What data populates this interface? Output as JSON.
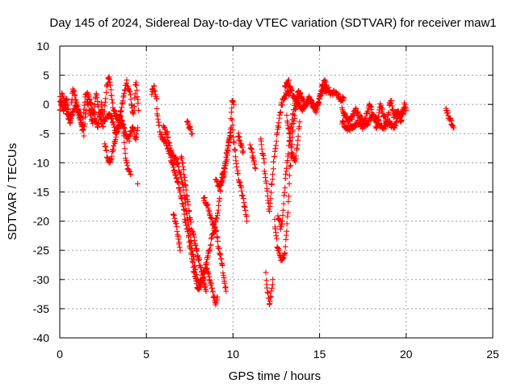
{
  "chart_data": {
    "type": "scatter",
    "title": "Day 145 of 2024, Sidereal Day-to-day VTEC variation (SDTVAR) for receiver maw1",
    "xlabel": "GPS time / hours",
    "ylabel": "SDTVAR / TECUs",
    "xlim": [
      0,
      25
    ],
    "ylim": [
      -40,
      10
    ],
    "x_ticks": [
      0,
      5,
      10,
      15,
      20,
      25
    ],
    "y_ticks": [
      -40,
      -35,
      -30,
      -25,
      -20,
      -15,
      -10,
      -5,
      0,
      5,
      10
    ],
    "x_tick_labels": [
      "0",
      "5",
      "10",
      "15",
      "20",
      "25"
    ],
    "y_tick_labels": [
      "-40",
      "-35",
      "-30",
      "-25",
      "-20",
      "-15",
      "-10",
      "-5",
      "0",
      "5",
      "10"
    ],
    "grid": true,
    "legend": "none",
    "marker": "+",
    "marker_color": "#ff0000",
    "series": [
      {
        "name": "maw1",
        "trace_anchors": [
          [
            [
              0.0,
              -1
            ],
            [
              0.15,
              2
            ],
            [
              0.3,
              0
            ],
            [
              0.45,
              -2
            ],
            [
              0.6,
              -3
            ],
            [
              0.75,
              3
            ],
            [
              0.9,
              1
            ],
            [
              1.1,
              -2
            ],
            [
              1.3,
              -4
            ],
            [
              1.5,
              2
            ],
            [
              1.7,
              -1
            ],
            [
              1.9,
              -3
            ],
            [
              2.1,
              2
            ],
            [
              2.3,
              -2
            ],
            [
              2.5,
              -4
            ],
            [
              2.7,
              3
            ],
            [
              2.85,
              5
            ],
            [
              3.05,
              0
            ],
            [
              3.25,
              -2
            ],
            [
              3.45,
              -3
            ],
            [
              3.65,
              1
            ],
            [
              3.85,
              4
            ],
            [
              4.05,
              2
            ],
            [
              4.25,
              -2
            ],
            [
              4.4,
              4
            ],
            [
              4.55,
              -1
            ]
          ],
          [
            [
              0.0,
              1
            ],
            [
              0.2,
              -1
            ],
            [
              0.4,
              1
            ],
            [
              0.6,
              -3
            ],
            [
              0.8,
              -1
            ],
            [
              1.0,
              0
            ],
            [
              1.2,
              -2
            ],
            [
              1.4,
              -5
            ],
            [
              1.6,
              2
            ],
            [
              1.8,
              0
            ],
            [
              2.0,
              -2
            ],
            [
              2.2,
              -4
            ],
            [
              2.4,
              0
            ],
            [
              2.6,
              -3
            ],
            [
              2.8,
              -2
            ],
            [
              3.0,
              -2
            ],
            [
              3.2,
              -5
            ],
            [
              3.4,
              -4
            ],
            [
              3.6,
              -3
            ],
            [
              3.8,
              -5
            ],
            [
              4.0,
              -6
            ],
            [
              4.2,
              -4
            ],
            [
              4.4,
              -6
            ],
            [
              4.5,
              -4
            ]
          ],
          [
            [
              2.6,
              -7
            ],
            [
              2.75,
              -9
            ],
            [
              2.9,
              -10
            ],
            [
              3.05,
              -8
            ],
            [
              3.2,
              -6
            ],
            [
              3.35,
              -4
            ],
            [
              3.5,
              -1
            ],
            [
              3.65,
              -4
            ],
            [
              3.8,
              -9
            ],
            [
              3.95,
              -11
            ],
            [
              4.1,
              -12
            ]
          ],
          [
            [
              5.3,
              2
            ],
            [
              5.45,
              3
            ],
            [
              5.6,
              1
            ]
          ],
          [
            [
              5.6,
              -1
            ],
            [
              5.7,
              -3
            ],
            [
              5.8,
              -5
            ],
            [
              6.0,
              -6
            ],
            [
              6.2,
              -7
            ],
            [
              6.4,
              -9
            ],
            [
              6.6,
              -11
            ],
            [
              6.8,
              -13
            ],
            [
              6.95,
              -15
            ],
            [
              7.1,
              -17
            ],
            [
              7.25,
              -20
            ],
            [
              7.4,
              -22
            ],
            [
              7.55,
              -25
            ],
            [
              7.7,
              -28
            ],
            [
              7.85,
              -30
            ],
            [
              8.0,
              -32
            ],
            [
              8.15,
              -31
            ],
            [
              8.3,
              -29
            ],
            [
              8.45,
              -28
            ],
            [
              8.6,
              -29
            ],
            [
              8.75,
              -31
            ],
            [
              8.9,
              -33
            ],
            [
              9.0,
              -34
            ],
            [
              9.1,
              -33
            ]
          ],
          [
            [
              6.0,
              -4
            ],
            [
              6.2,
              -5
            ],
            [
              6.4,
              -8
            ],
            [
              6.6,
              -9
            ],
            [
              6.8,
              -10
            ],
            [
              6.95,
              -12
            ],
            [
              7.1,
              -14
            ],
            [
              7.2,
              -16
            ],
            [
              7.35,
              -19
            ],
            [
              7.5,
              -22
            ],
            [
              7.65,
              -25
            ],
            [
              7.8,
              -28
            ],
            [
              7.95,
              -30
            ],
            [
              8.1,
              -31
            ],
            [
              8.25,
              -30
            ],
            [
              8.4,
              -28
            ],
            [
              8.55,
              -26
            ],
            [
              8.7,
              -24
            ],
            [
              8.85,
              -22
            ],
            [
              9.0,
              -20
            ],
            [
              9.1,
              -19
            ],
            [
              9.25,
              -15
            ],
            [
              9.4,
              -13
            ],
            [
              9.55,
              -11
            ],
            [
              9.7,
              -8
            ],
            [
              9.85,
              -4
            ],
            [
              9.95,
              1
            ],
            [
              10.05,
              0
            ]
          ],
          [
            [
              7.0,
              -9
            ],
            [
              7.15,
              -11
            ],
            [
              7.3,
              -15
            ],
            [
              7.45,
              -18
            ],
            [
              7.6,
              -21
            ],
            [
              7.75,
              -23
            ],
            [
              7.9,
              -25
            ],
            [
              8.05,
              -27
            ],
            [
              8.2,
              -29
            ],
            [
              8.35,
              -31
            ],
            [
              8.45,
              -32
            ]
          ],
          [
            [
              6.55,
              -19
            ],
            [
              6.7,
              -20
            ],
            [
              6.8,
              -22
            ],
            [
              6.95,
              -25
            ]
          ],
          [
            [
              7.35,
              -3
            ],
            [
              7.5,
              -4
            ],
            [
              7.65,
              -5
            ]
          ],
          [
            [
              8.3,
              -16
            ],
            [
              8.5,
              -17
            ],
            [
              8.7,
              -19
            ],
            [
              8.9,
              -21
            ],
            [
              9.05,
              -22
            ],
            [
              9.2,
              -25
            ],
            [
              9.35,
              -27
            ],
            [
              9.5,
              -30
            ],
            [
              9.6,
              -32
            ]
          ],
          [
            [
              9.0,
              -13
            ],
            [
              9.2,
              -14
            ],
            [
              9.4,
              -12
            ],
            [
              9.6,
              -9
            ],
            [
              9.8,
              -6
            ],
            [
              9.9,
              -4
            ]
          ],
          [
            [
              9.95,
              -3
            ],
            [
              10.05,
              -6
            ],
            [
              10.2,
              -10
            ],
            [
              10.35,
              -13
            ],
            [
              10.5,
              -15
            ],
            [
              10.65,
              -17
            ],
            [
              10.8,
              -20
            ]
          ],
          [
            [
              10.3,
              -5
            ],
            [
              10.45,
              -7
            ],
            [
              10.6,
              -8
            ]
          ],
          [
            [
              11.0,
              -7
            ],
            [
              11.15,
              -9
            ],
            [
              11.3,
              -11
            ]
          ],
          [
            [
              11.6,
              -6
            ],
            [
              11.75,
              -9
            ],
            [
              11.9,
              -13
            ],
            [
              12.0,
              -16
            ],
            [
              12.1,
              -18
            ],
            [
              12.2,
              -15
            ],
            [
              12.35,
              -10
            ],
            [
              12.5,
              -6
            ],
            [
              12.65,
              -3
            ],
            [
              12.8,
              0
            ],
            [
              12.95,
              1
            ],
            [
              13.1,
              2
            ],
            [
              13.3,
              2
            ]
          ],
          [
            [
              11.9,
              -29
            ],
            [
              12.0,
              -32
            ],
            [
              12.1,
              -34
            ],
            [
              12.2,
              -33
            ],
            [
              12.3,
              -30
            ]
          ],
          [
            [
              12.4,
              -20
            ],
            [
              12.55,
              -24
            ],
            [
              12.7,
              -26
            ],
            [
              12.85,
              -27
            ],
            [
              13.0,
              -25
            ],
            [
              13.1,
              -22
            ],
            [
              13.2,
              -17
            ],
            [
              13.3,
              -11
            ],
            [
              13.45,
              -5
            ],
            [
              13.6,
              -1
            ],
            [
              13.75,
              1
            ],
            [
              13.9,
              2
            ]
          ],
          [
            [
              12.6,
              -19
            ],
            [
              12.75,
              -21
            ],
            [
              12.85,
              -20
            ],
            [
              12.95,
              -16
            ],
            [
              13.05,
              -12
            ],
            [
              13.2,
              -8
            ],
            [
              13.35,
              -4
            ],
            [
              13.5,
              -1
            ],
            [
              13.65,
              1
            ],
            [
              13.8,
              2
            ],
            [
              14.0,
              1
            ],
            [
              14.2,
              0
            ],
            [
              14.4,
              1
            ],
            [
              14.6,
              0
            ],
            [
              14.8,
              -1
            ],
            [
              15.0,
              1
            ],
            [
              15.2,
              3
            ],
            [
              15.4,
              2
            ]
          ],
          [
            [
              13.0,
              3
            ],
            [
              13.2,
              4
            ],
            [
              13.4,
              2
            ],
            [
              13.6,
              1
            ],
            [
              13.8,
              0
            ],
            [
              14.0,
              -1
            ],
            [
              14.2,
              0
            ],
            [
              14.4,
              1
            ],
            [
              14.6,
              0
            ],
            [
              14.8,
              -1
            ],
            [
              15.0,
              1
            ],
            [
              15.15,
              3
            ],
            [
              15.3,
              4
            ],
            [
              15.45,
              3
            ],
            [
              15.6,
              2
            ],
            [
              15.8,
              2
            ],
            [
              16.0,
              2
            ],
            [
              16.2,
              1
            ],
            [
              16.4,
              1
            ]
          ],
          [
            [
              13.1,
              -2
            ],
            [
              13.25,
              -5
            ],
            [
              13.4,
              -8
            ],
            [
              13.6,
              -10
            ],
            [
              13.75,
              -6
            ],
            [
              13.85,
              -3
            ]
          ],
          [
            [
              16.3,
              -1
            ],
            [
              16.5,
              -2
            ],
            [
              16.7,
              -3
            ],
            [
              16.9,
              -2
            ],
            [
              17.1,
              -1
            ],
            [
              17.3,
              -2
            ],
            [
              17.5,
              -3
            ],
            [
              17.7,
              -2
            ],
            [
              17.9,
              0
            ],
            [
              18.1,
              -2
            ],
            [
              18.3,
              -4
            ],
            [
              18.5,
              0
            ],
            [
              18.7,
              -2
            ],
            [
              18.9,
              -3
            ],
            [
              19.1,
              1
            ],
            [
              19.3,
              -2
            ],
            [
              19.5,
              -1
            ],
            [
              19.7,
              -3
            ],
            [
              19.9,
              0
            ],
            [
              20.0,
              -1
            ]
          ],
          [
            [
              16.3,
              -3
            ],
            [
              16.6,
              -4
            ],
            [
              16.9,
              -4
            ],
            [
              17.2,
              -3
            ],
            [
              17.5,
              -4
            ],
            [
              17.8,
              -3
            ],
            [
              18.1,
              -2
            ],
            [
              18.4,
              -3
            ],
            [
              18.7,
              -4
            ],
            [
              19.0,
              -3
            ],
            [
              19.3,
              -4
            ],
            [
              19.6,
              -2
            ],
            [
              19.9,
              -1
            ]
          ],
          [
            [
              22.3,
              -1
            ],
            [
              22.45,
              -2
            ],
            [
              22.6,
              -3
            ],
            [
              22.75,
              -4
            ]
          ]
        ]
      }
    ]
  }
}
